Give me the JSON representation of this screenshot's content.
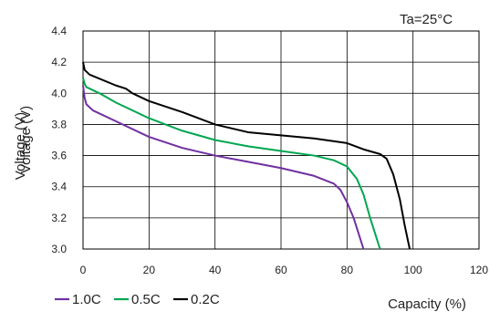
{
  "chart_data": {
    "type": "line",
    "title": "",
    "annotation": "Ta=25°C",
    "xlabel": "Capacity (%)",
    "ylabel": "Voltage (V)",
    "ylabel_overlay": "Voltage (V)",
    "xlim": [
      0,
      120
    ],
    "ylim": [
      3.0,
      4.4
    ],
    "xticks": [
      "0",
      "20",
      "40",
      "60",
      "80",
      "100",
      "120"
    ],
    "yticks": [
      "3.0",
      "3.2",
      "3.4",
      "3.6",
      "3.8",
      "4.0",
      "4.2",
      "4.4"
    ],
    "grid": true,
    "legend_position": "bottom-left",
    "series": [
      {
        "name": "1.0C",
        "color": "#7030a0",
        "points": [
          [
            0,
            4.05
          ],
          [
            0.5,
            3.97
          ],
          [
            1,
            3.93
          ],
          [
            3,
            3.89
          ],
          [
            10,
            3.82
          ],
          [
            20,
            3.72
          ],
          [
            30,
            3.65
          ],
          [
            40,
            3.6
          ],
          [
            50,
            3.56
          ],
          [
            60,
            3.52
          ],
          [
            70,
            3.47
          ],
          [
            76,
            3.42
          ],
          [
            78,
            3.38
          ],
          [
            80,
            3.3
          ],
          [
            82,
            3.2
          ],
          [
            83.5,
            3.1
          ],
          [
            85,
            3.0
          ]
        ]
      },
      {
        "name": "0.5C",
        "color": "#00a650",
        "points": [
          [
            0,
            4.1
          ],
          [
            0.5,
            4.06
          ],
          [
            1,
            4.04
          ],
          [
            5,
            4.0
          ],
          [
            10,
            3.94
          ],
          [
            20,
            3.84
          ],
          [
            30,
            3.76
          ],
          [
            40,
            3.7
          ],
          [
            50,
            3.66
          ],
          [
            60,
            3.63
          ],
          [
            70,
            3.6
          ],
          [
            76,
            3.57
          ],
          [
            80,
            3.53
          ],
          [
            83,
            3.45
          ],
          [
            85,
            3.35
          ],
          [
            87,
            3.2
          ],
          [
            88.5,
            3.1
          ],
          [
            90,
            3.0
          ]
        ]
      },
      {
        "name": "0.2C",
        "color": "#000000",
        "points": [
          [
            0,
            4.2
          ],
          [
            0.5,
            4.15
          ],
          [
            2,
            4.12
          ],
          [
            10,
            4.05
          ],
          [
            13,
            4.03
          ],
          [
            15,
            4.0
          ],
          [
            20,
            3.95
          ],
          [
            30,
            3.88
          ],
          [
            40,
            3.8
          ],
          [
            50,
            3.75
          ],
          [
            60,
            3.73
          ],
          [
            70,
            3.71
          ],
          [
            80,
            3.68
          ],
          [
            85,
            3.64
          ],
          [
            90,
            3.61
          ],
          [
            92,
            3.58
          ],
          [
            94,
            3.48
          ],
          [
            96,
            3.32
          ],
          [
            97.5,
            3.15
          ],
          [
            99,
            3.0
          ]
        ]
      }
    ]
  }
}
